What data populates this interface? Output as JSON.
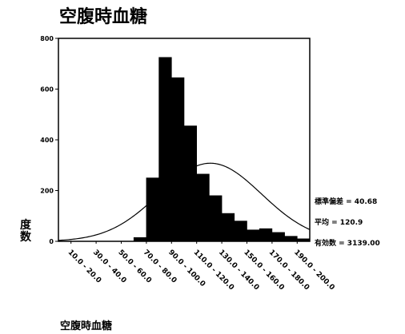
{
  "chart_data": {
    "type": "bar",
    "title": "空腹時血糖",
    "xlabel": "空腹時血糖",
    "ylabel": "度数",
    "ylim": [
      0,
      800
    ],
    "yticks": [
      0,
      200,
      400,
      600,
      800
    ],
    "xlim": [
      0,
      200
    ],
    "bin_width": 10,
    "xtick_labels": [
      {
        "label": "10.0 - 20.0",
        "x": 10
      },
      {
        "label": "30.0 - 40.0",
        "x": 30
      },
      {
        "label": "50.0 - 60.0",
        "x": 50
      },
      {
        "label": "70.0 - 80.0",
        "x": 70
      },
      {
        "label": "90.0 - 100.0",
        "x": 90
      },
      {
        "label": "110.0 - 120.0",
        "x": 110
      },
      {
        "label": "130.0 - 140.0",
        "x": 130
      },
      {
        "label": "150.0 - 160.0",
        "x": 150
      },
      {
        "label": "170.0 - 180.0",
        "x": 170
      },
      {
        "label": "190.0 - 200.0",
        "x": 190
      }
    ],
    "bins": [
      {
        "from": 60,
        "to": 70,
        "value": 15
      },
      {
        "from": 70,
        "to": 80,
        "value": 250
      },
      {
        "from": 80,
        "to": 90,
        "value": 725
      },
      {
        "from": 90,
        "to": 100,
        "value": 645
      },
      {
        "from": 100,
        "to": 110,
        "value": 455
      },
      {
        "from": 110,
        "to": 120,
        "value": 265
      },
      {
        "from": 120,
        "to": 130,
        "value": 180
      },
      {
        "from": 130,
        "to": 140,
        "value": 110
      },
      {
        "from": 140,
        "to": 150,
        "value": 80
      },
      {
        "from": 150,
        "to": 160,
        "value": 45
      },
      {
        "from": 160,
        "to": 170,
        "value": 50
      },
      {
        "from": 170,
        "to": 180,
        "value": 35
      },
      {
        "from": 180,
        "to": 190,
        "value": 20
      },
      {
        "from": 190,
        "to": 200,
        "value": 10
      }
    ],
    "normal_curve": {
      "mean": 120.9,
      "sd": 40.68,
      "n": 3139
    },
    "stats": [
      {
        "label": "標準偏差",
        "value": "40.68"
      },
      {
        "label": "平均",
        "value": "120.9"
      },
      {
        "label": "有効数",
        "value": "3139.00"
      }
    ],
    "grid": false,
    "colors": {
      "bars": "#000000",
      "curve": "#000000",
      "axes": "#000000"
    }
  }
}
